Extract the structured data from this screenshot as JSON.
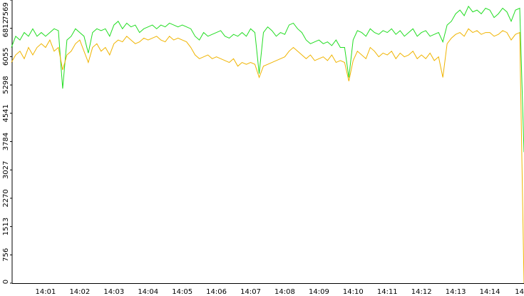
{
  "chart_data": {
    "type": "line",
    "categories": [
      null,
      null,
      null,
      null,
      null,
      null,
      null,
      null,
      "14:01",
      null,
      null,
      null,
      null,
      null,
      null,
      null,
      "14:02",
      null,
      null,
      null,
      null,
      null,
      null,
      null,
      "14:03",
      null,
      null,
      null,
      null,
      null,
      null,
      null,
      "14:04",
      null,
      null,
      null,
      null,
      null,
      null,
      null,
      "14:05",
      null,
      null,
      null,
      null,
      null,
      null,
      null,
      "14:06",
      null,
      null,
      null,
      null,
      null,
      null,
      null,
      "14:07",
      null,
      null,
      null,
      null,
      null,
      null,
      null,
      "14:08",
      null,
      null,
      null,
      null,
      null,
      null,
      null,
      "14:09",
      null,
      null,
      null,
      null,
      null,
      null,
      null,
      "14:10",
      null,
      null,
      null,
      null,
      null,
      null,
      null,
      "14:11",
      null,
      null,
      null,
      null,
      null,
      null,
      null,
      "14:12",
      null,
      null,
      null,
      null,
      null,
      null,
      null,
      "14:13",
      null,
      null,
      null,
      null,
      null,
      null,
      null,
      "14:14",
      null,
      null,
      null,
      null,
      null,
      null,
      null,
      "14"
    ],
    "series": [
      {
        "name": "green",
        "color": "#22dd22",
        "values": [
          6300,
          6600,
          6500,
          6700,
          6600,
          6800,
          6600,
          6700,
          6600,
          6700,
          6800,
          6750,
          5200,
          6500,
          6600,
          6800,
          6700,
          6600,
          6150,
          6700,
          6800,
          6750,
          6800,
          6600,
          6900,
          7000,
          6800,
          6950,
          6850,
          6900,
          6700,
          6800,
          6850,
          6900,
          6800,
          6900,
          6850,
          6950,
          6900,
          6850,
          6900,
          6850,
          6800,
          6600,
          6500,
          6700,
          6600,
          6650,
          6700,
          6750,
          6600,
          6550,
          6650,
          6600,
          6700,
          6600,
          6800,
          6700,
          5600,
          6700,
          6850,
          6750,
          6600,
          6700,
          6650,
          6900,
          6950,
          6800,
          6700,
          6500,
          6400,
          6450,
          6500,
          6400,
          6450,
          6350,
          6500,
          6300,
          6300,
          5500,
          6500,
          6750,
          6700,
          6600,
          6800,
          6700,
          6650,
          6750,
          6700,
          6800,
          6650,
          6750,
          6600,
          6700,
          6800,
          6600,
          6700,
          6750,
          6600,
          6650,
          6700,
          6450,
          6900,
          7000,
          7200,
          7300,
          7150,
          7400,
          7250,
          7300,
          7200,
          7350,
          7300,
          7100,
          7200,
          7350,
          7250,
          7000,
          7300,
          7350,
          3500
        ]
      },
      {
        "name": "yellow",
        "color": "#f0b400",
        "values": [
          5900,
          6100,
          6200,
          6000,
          6300,
          6100,
          6300,
          6400,
          6300,
          6500,
          6200,
          6300,
          5700,
          6100,
          6200,
          6400,
          6500,
          6200,
          5900,
          6300,
          6400,
          6200,
          6300,
          6100,
          6400,
          6500,
          6450,
          6600,
          6500,
          6400,
          6450,
          6550,
          6500,
          6550,
          6600,
          6500,
          6450,
          6600,
          6500,
          6550,
          6500,
          6450,
          6300,
          6100,
          6000,
          6050,
          6100,
          6000,
          6050,
          6000,
          5950,
          5900,
          6000,
          5800,
          5900,
          5850,
          5900,
          5850,
          5500,
          5800,
          5850,
          5900,
          5950,
          6000,
          6050,
          6200,
          6300,
          6200,
          6100,
          6000,
          6100,
          5950,
          6000,
          6050,
          5950,
          6100,
          5900,
          5950,
          5900,
          5400,
          5950,
          6200,
          6100,
          6000,
          6300,
          6200,
          6050,
          6150,
          6100,
          6200,
          6000,
          6150,
          6050,
          6100,
          6200,
          6000,
          6100,
          6000,
          6150,
          5950,
          6050,
          5500,
          6400,
          6550,
          6650,
          6700,
          6600,
          6800,
          6700,
          6750,
          6650,
          6700,
          6700,
          6600,
          6650,
          6750,
          6700,
          6500,
          6650,
          6700,
          0
        ]
      }
    ],
    "ylim": [
      0,
      7569
    ],
    "yticks": [
      0,
      756,
      1513,
      2270,
      3027,
      3784,
      4541,
      5298,
      6055,
      6812,
      7569
    ]
  }
}
